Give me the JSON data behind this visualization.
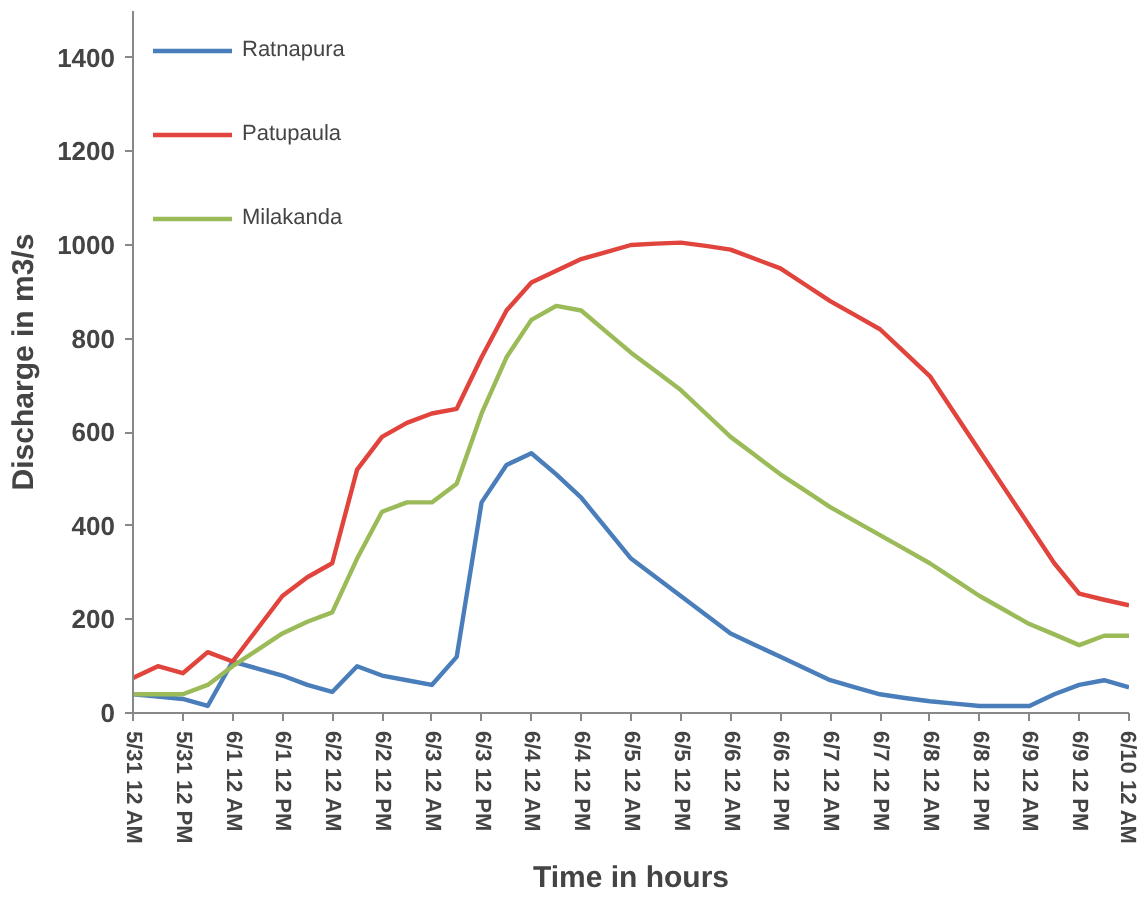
{
  "chart_data": {
    "type": "line",
    "xlabel": "Time in hours",
    "ylabel": "Discharge in m3/s",
    "categories": [
      "5/31 12 AM",
      null,
      "5/31 12 PM",
      null,
      "6/1 12 AM",
      null,
      "6/1 12 PM",
      null,
      "6/2 12 AM",
      null,
      "6/2 12 PM",
      null,
      "6/3 12 AM",
      null,
      "6/3 12 PM",
      null,
      "6/4 12 AM",
      null,
      "6/4 12 PM",
      null,
      "6/5 12 AM",
      null,
      "6/5 12 PM",
      null,
      "6/6 12 AM",
      null,
      "6/6 12 PM",
      null,
      "6/7 12 AM",
      null,
      "6/7 12 PM",
      null,
      "6/8 12 AM",
      null,
      "6/8 12 PM",
      null,
      "6/9 12 AM",
      null,
      "6/9 12 PM",
      null,
      "6/10 12 AM"
    ],
    "ylim": [
      0,
      1500
    ],
    "yticks": [
      0,
      200,
      400,
      600,
      800,
      1000,
      1200,
      1400
    ],
    "grid": false,
    "legend": "top left",
    "marker": "none",
    "line_style": "solid",
    "series": [
      {
        "name": "Ratnapura",
        "color": "#4a7ebb",
        "values": [
          40,
          35,
          30,
          15,
          110,
          95,
          80,
          60,
          45,
          100,
          80,
          70,
          60,
          120,
          450,
          530,
          555,
          510,
          460,
          395,
          330,
          290,
          250,
          210,
          170,
          145,
          120,
          95,
          70,
          55,
          40,
          32,
          25,
          20,
          15,
          15,
          15,
          40,
          60,
          70,
          55
        ]
      },
      {
        "name": "Patupaula",
        "color": "#e0443c",
        "values": [
          75,
          100,
          85,
          130,
          110,
          180,
          250,
          290,
          320,
          520,
          590,
          620,
          640,
          650,
          760,
          860,
          920,
          945,
          970,
          985,
          1000,
          1003,
          1005,
          998,
          990,
          970,
          950,
          915,
          880,
          850,
          820,
          770,
          720,
          640,
          560,
          480,
          400,
          320,
          255,
          242,
          230
        ]
      },
      {
        "name": "Milakanda",
        "color": "#9bbb59",
        "values": [
          40,
          40,
          40,
          60,
          100,
          135,
          170,
          195,
          215,
          330,
          430,
          450,
          450,
          490,
          640,
          760,
          840,
          870,
          860,
          815,
          770,
          730,
          690,
          640,
          590,
          550,
          510,
          475,
          440,
          410,
          380,
          350,
          320,
          285,
          250,
          220,
          190,
          168,
          145,
          165,
          165
        ]
      }
    ]
  }
}
